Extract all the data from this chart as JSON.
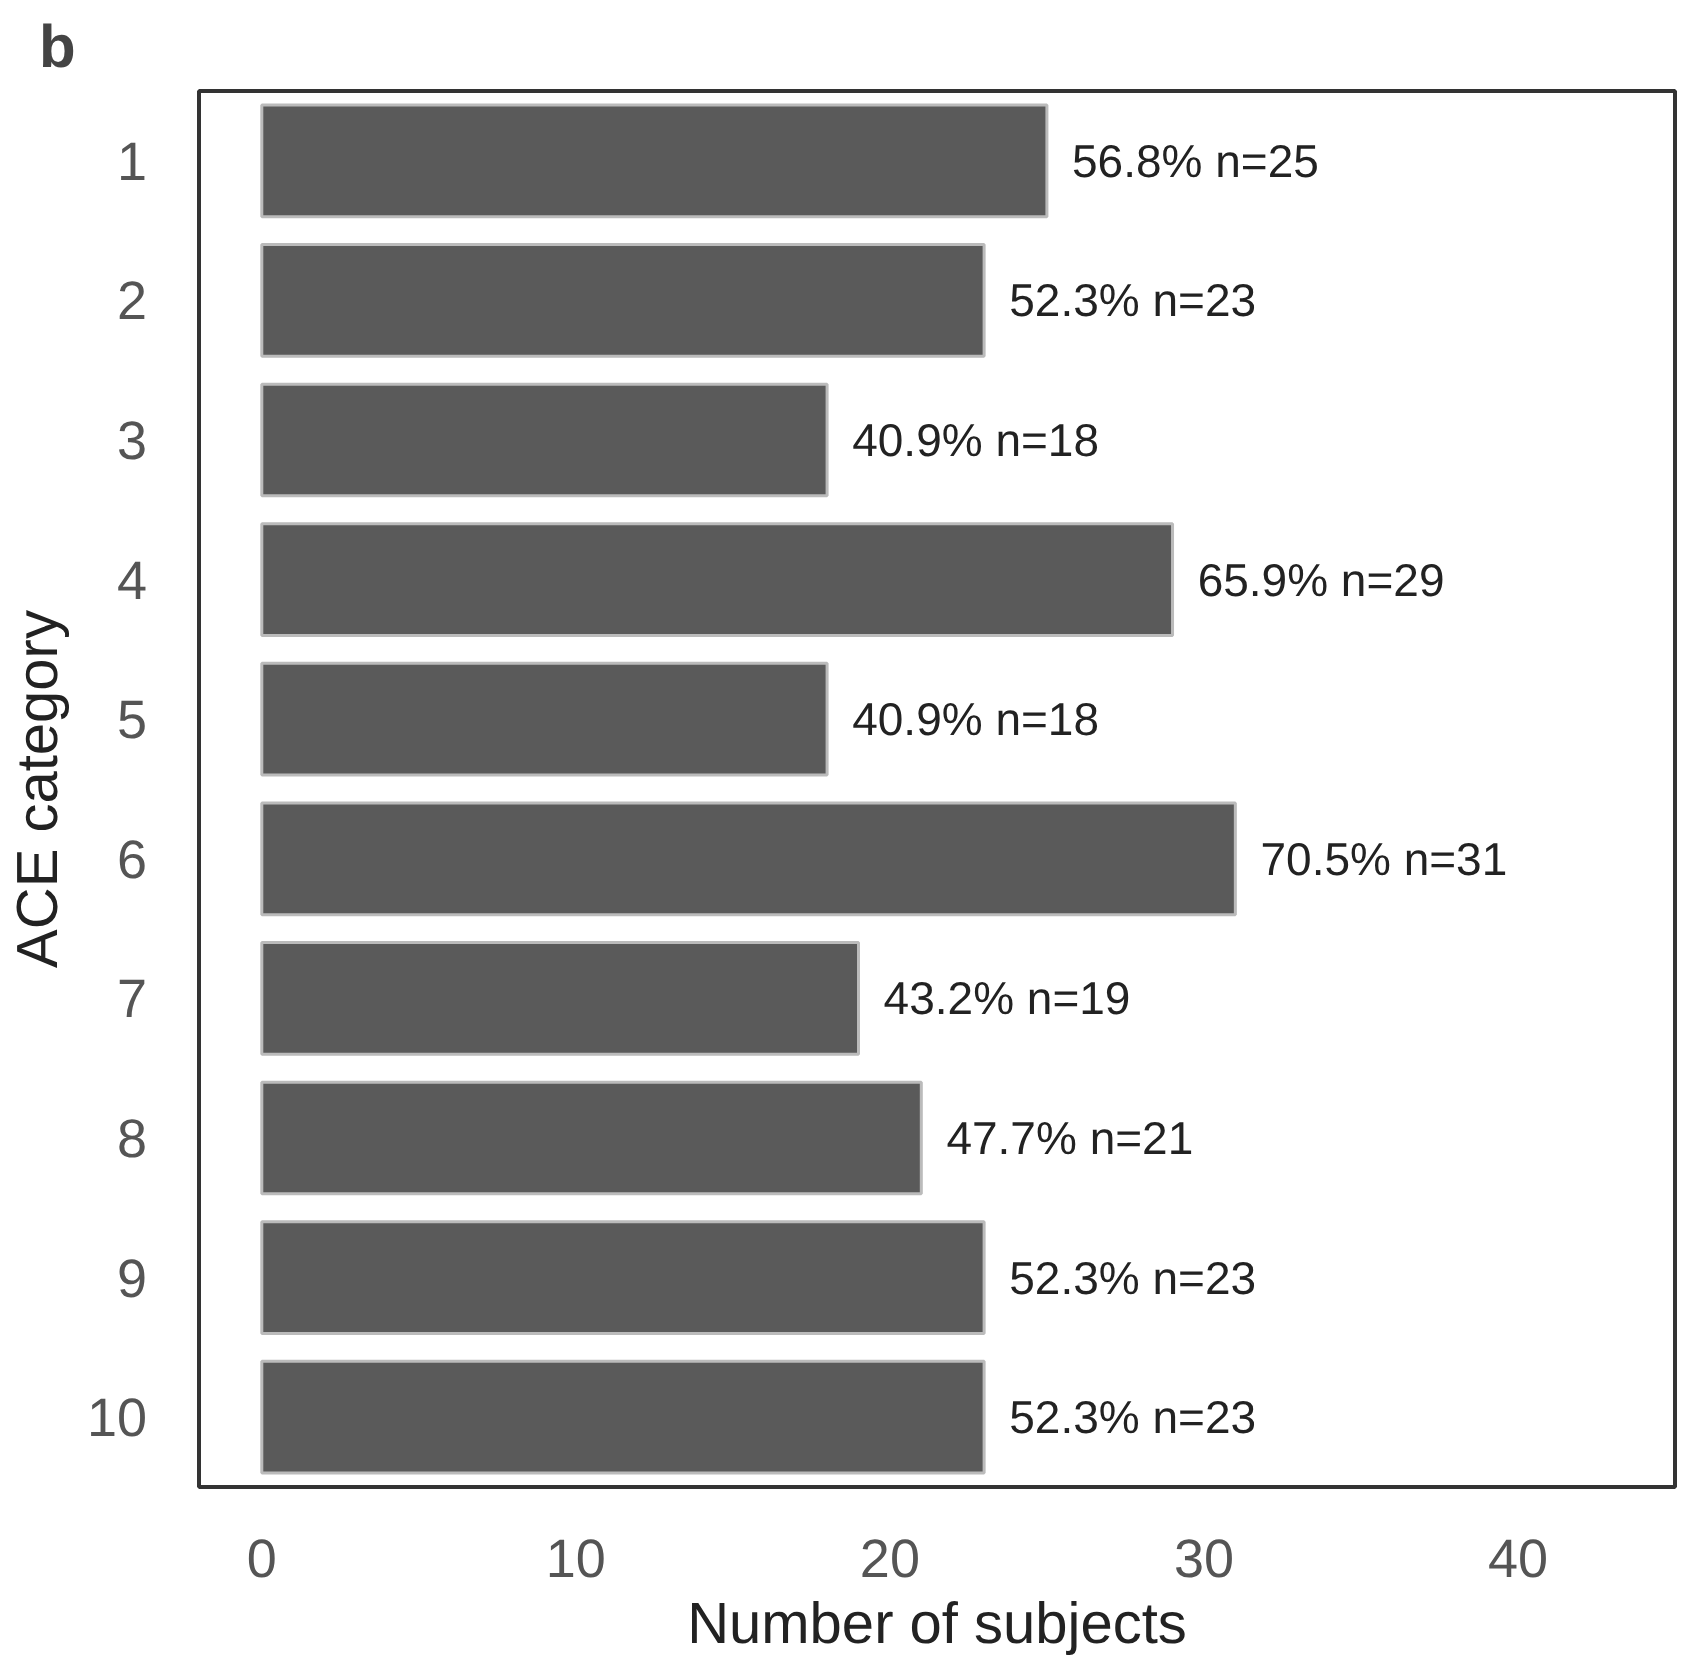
{
  "chart_data": {
    "type": "bar",
    "orientation": "horizontal",
    "title": "b",
    "xlabel": "Number of subjects",
    "ylabel": "ACE category",
    "categories": [
      "1",
      "2",
      "3",
      "4",
      "5",
      "6",
      "7",
      "8",
      "9",
      "10"
    ],
    "values": [
      25,
      23,
      18,
      29,
      18,
      31,
      19,
      21,
      23,
      23
    ],
    "value_labels": [
      "56.8%  n=25",
      "52.3%  n=23",
      "40.9%  n=18",
      "65.9%  n=29",
      "40.9%  n=18",
      "70.5%  n=31",
      "43.2%  n=19",
      "47.7%  n=21",
      "52.3%  n=23",
      "52.3%  n=23"
    ],
    "color": "#5a5a5a",
    "xlim": [
      -2,
      45
    ],
    "xticks": [
      0,
      10,
      20,
      30,
      40
    ],
    "grid": false
  }
}
